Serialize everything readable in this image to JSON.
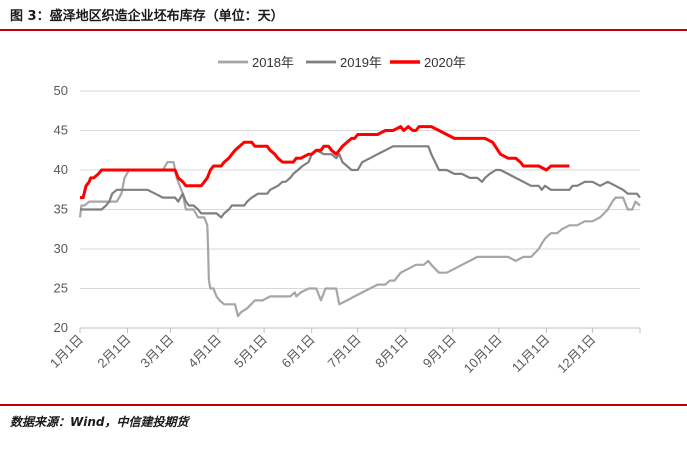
{
  "header": {
    "title": "图 3：盛泽地区织造企业坯布库存（单位：天）"
  },
  "footer": {
    "source": "数据来源：Wind，中信建投期货"
  },
  "colors": {
    "2018": "#a6a6a6",
    "2019": "#7f7f7f",
    "2020": "#ff0000",
    "title_rule": "#c00000",
    "grid": "#d9d9d9"
  },
  "chart_data": {
    "type": "line",
    "title": "",
    "xlabel": "",
    "ylabel": "",
    "ylim": [
      20,
      50
    ],
    "yticks": [
      20,
      25,
      30,
      35,
      40,
      45,
      50
    ],
    "xlim": [
      1,
      366
    ],
    "grid": "horizontal",
    "legend": "top-center",
    "x_tick_labels": [
      "1月1日",
      "2月1日",
      "3月1日",
      "4月1日",
      "5月1日",
      "6月1日",
      "7月1日",
      "8月1日",
      "9月1日",
      "10月1日",
      "11月1日",
      "12月1日"
    ],
    "x_ticks": [
      1,
      32,
      60,
      91,
      121,
      152,
      182,
      213,
      244,
      274,
      305,
      335
    ],
    "series": [
      {
        "name": "2018年",
        "x": [
          1,
          2,
          4,
          7,
          10,
          13,
          20,
          25,
          28,
          30,
          33,
          37,
          40,
          45,
          50,
          55,
          58,
          60,
          62,
          63,
          64,
          66,
          68,
          70,
          72,
          75,
          78,
          80,
          82,
          84,
          84.5,
          85,
          86,
          88,
          90,
          92,
          95,
          97,
          99,
          100,
          102,
          104,
          106,
          110,
          115,
          120,
          125,
          130,
          134,
          138,
          141,
          142,
          145,
          150,
          152,
          155,
          158,
          161,
          162,
          165,
          168,
          170,
          175,
          180,
          185,
          190,
          195,
          200,
          203,
          206,
          210,
          215,
          220,
          225,
          228,
          230,
          235,
          240,
          245,
          250,
          255,
          260,
          265,
          270,
          275,
          280,
          285,
          290,
          295,
          300,
          303,
          305,
          308,
          312,
          315,
          320,
          325,
          330,
          335,
          340,
          345,
          348,
          350,
          352,
          355,
          358,
          361,
          363,
          366
        ],
        "values": [
          34,
          35.5,
          35.5,
          36,
          36,
          36,
          36,
          36,
          37,
          39,
          40,
          40,
          40,
          40,
          40,
          40,
          41,
          41,
          41,
          40,
          39,
          38,
          37,
          35,
          35,
          35,
          34,
          34,
          34,
          33,
          30,
          26,
          25,
          25,
          24,
          23.5,
          23,
          23,
          23,
          23,
          23,
          21.5,
          22,
          22.5,
          23.5,
          23.5,
          24,
          24,
          24,
          24,
          24.5,
          24,
          24.5,
          25,
          25,
          25,
          23.5,
          25,
          25,
          25,
          25,
          23,
          23.5,
          24,
          24.5,
          25,
          25.5,
          25.5,
          26,
          26,
          27,
          27.5,
          28,
          28,
          28.5,
          28,
          27,
          27,
          27.5,
          28,
          28.5,
          29,
          29,
          29,
          29,
          29,
          28.5,
          29,
          29,
          30,
          31,
          31.5,
          32,
          32,
          32.5,
          33,
          33,
          33.5,
          33.5,
          34,
          35,
          36,
          36.5,
          36.5,
          36.5,
          35,
          35,
          36,
          35.5
        ]
      },
      {
        "name": "2019年",
        "x": [
          1,
          3,
          5,
          8,
          12,
          15,
          18,
          20,
          22,
          25,
          28,
          32,
          35,
          40,
          45,
          50,
          55,
          60,
          63,
          65,
          68,
          70,
          72,
          75,
          78,
          80,
          85,
          88,
          90,
          93,
          95,
          98,
          100,
          105,
          108,
          110,
          113,
          117,
          120,
          123,
          125,
          130,
          133,
          135,
          138,
          140,
          143,
          146,
          150,
          152,
          155,
          160,
          165,
          168,
          170,
          172,
          175,
          178,
          180,
          182,
          185,
          190,
          195,
          200,
          205,
          210,
          215,
          220,
          225,
          228,
          230,
          235,
          240,
          245,
          250,
          255,
          260,
          263,
          265,
          268,
          272,
          275,
          280,
          285,
          290,
          295,
          300,
          302,
          304,
          308,
          312,
          315,
          320,
          322,
          325,
          330,
          335,
          340,
          345,
          350,
          355,
          358,
          360,
          362,
          364,
          366
        ],
        "values": [
          35,
          35,
          35,
          35,
          35,
          35,
          35.5,
          36,
          37,
          37.5,
          37.5,
          37.5,
          37.5,
          37.5,
          37.5,
          37,
          36.5,
          36.5,
          36.5,
          36,
          37,
          36,
          35.5,
          35.5,
          35,
          34.5,
          34.5,
          34.5,
          34.5,
          34,
          34.5,
          35,
          35.5,
          35.5,
          35.5,
          36,
          36.5,
          37,
          37,
          37,
          37.5,
          38,
          38.5,
          38.5,
          39,
          39.5,
          40,
          40.5,
          41,
          42,
          42.5,
          42,
          42,
          41.5,
          42,
          41,
          40.5,
          40,
          40,
          40,
          41,
          41.5,
          42,
          42.5,
          43,
          43,
          43,
          43,
          43,
          43,
          42,
          40,
          40,
          39.5,
          39.5,
          39,
          39,
          38.5,
          39,
          39.5,
          40,
          40,
          39.5,
          39,
          38.5,
          38,
          38,
          37.5,
          38,
          37.5,
          37.5,
          37.5,
          37.5,
          38,
          38,
          38.5,
          38.5,
          38,
          38.5,
          38,
          37.5,
          37,
          37,
          37,
          37,
          36.5
        ]
      },
      {
        "name": "2020年",
        "x": [
          1,
          3,
          5,
          7,
          8,
          10,
          13,
          15,
          20,
          25,
          30,
          35,
          40,
          45,
          50,
          55,
          60,
          63,
          65,
          68,
          70,
          72,
          75,
          78,
          80,
          82,
          84,
          86,
          88,
          90,
          93,
          95,
          98,
          100,
          102,
          105,
          108,
          110,
          113,
          115,
          118,
          120,
          123,
          125,
          128,
          130,
          133,
          135,
          138,
          140,
          142,
          145,
          150,
          152,
          155,
          158,
          160,
          163,
          165,
          168,
          170,
          172,
          175,
          178,
          180,
          182,
          185,
          188,
          190,
          195,
          200,
          205,
          210,
          212,
          215,
          218,
          220,
          222,
          225,
          230,
          235,
          240,
          245,
          250,
          255,
          260,
          265,
          270,
          275,
          280,
          285,
          288,
          290,
          293,
          295,
          300,
          305,
          308,
          310,
          315,
          320
        ],
        "values": [
          36.5,
          36.5,
          38,
          38.5,
          39,
          39,
          39.5,
          40,
          40,
          40,
          40,
          40,
          40,
          40,
          40,
          40,
          40,
          40,
          39,
          38.5,
          38,
          38,
          38,
          38,
          38,
          38.5,
          39,
          40,
          40.5,
          40.5,
          40.5,
          41,
          41.5,
          42,
          42.5,
          43,
          43.5,
          43.5,
          43.5,
          43,
          43,
          43,
          43,
          42.5,
          42,
          41.5,
          41,
          41,
          41,
          41,
          41.5,
          41.5,
          42,
          42,
          42.5,
          42.5,
          43,
          43,
          42.5,
          42,
          42.5,
          43,
          43.5,
          44,
          44,
          44.5,
          44.5,
          44.5,
          44.5,
          44.5,
          45,
          45,
          45.5,
          45,
          45.5,
          45,
          45,
          45.5,
          45.5,
          45.5,
          45,
          44.5,
          44,
          44,
          44,
          44,
          44,
          43.5,
          42,
          41.5,
          41.5,
          41,
          40.5,
          40.5,
          40.5,
          40.5,
          40,
          40.5,
          40.5,
          40.5,
          40.5
        ]
      }
    ]
  }
}
